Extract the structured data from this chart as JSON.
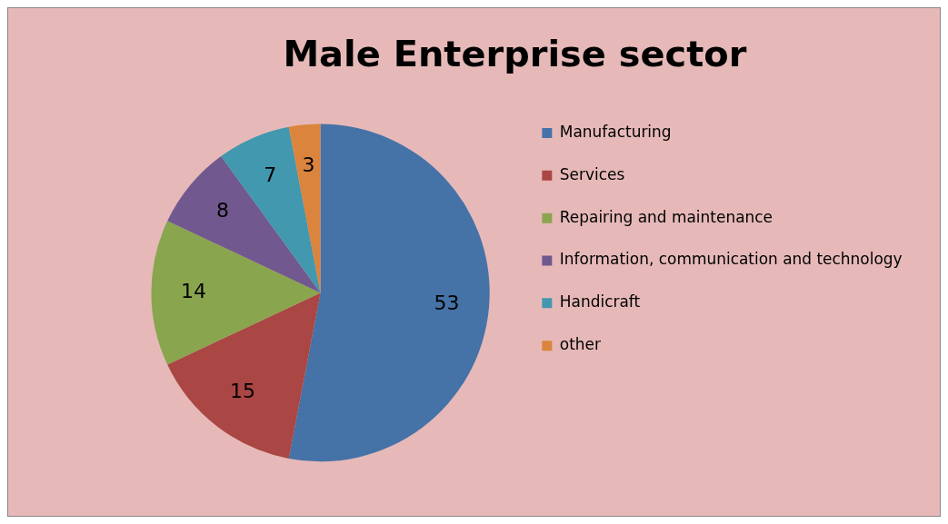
{
  "chart_data": {
    "type": "pie",
    "title": "Male Enterprise sector",
    "categories": [
      "Manufacturing",
      "Services",
      "Repairing and maintenance",
      "Information, communication and technology",
      "Handicraft",
      "other"
    ],
    "values": [
      53,
      15,
      14,
      8,
      7,
      3
    ],
    "colors": [
      "#4572a7",
      "#aa4643",
      "#89a54e",
      "#71588f",
      "#4198af",
      "#db843d"
    ],
    "data_labels": true,
    "legend": "right"
  }
}
